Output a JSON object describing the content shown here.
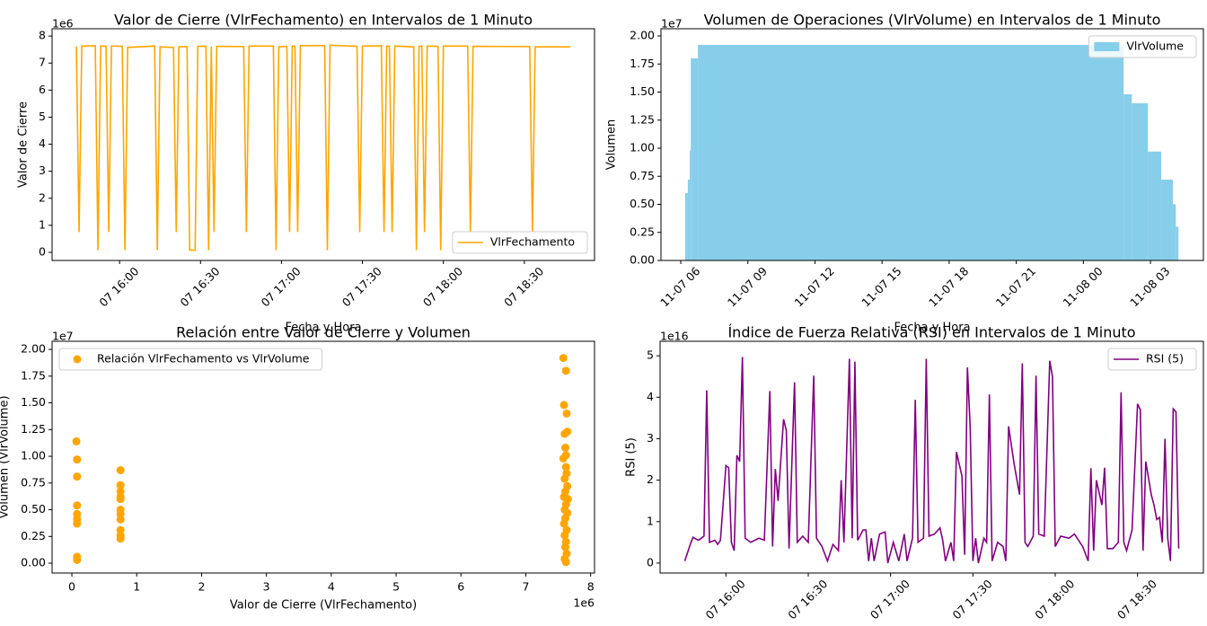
{
  "chart_data": [
    {
      "type": "line",
      "title": "Valor de Cierre (VlrFechamento) en Intervalos de 1 Minuto",
      "x_label": "Fecha y Hora",
      "y_label": "Valor de Cierre",
      "y_offset_label": "1e6",
      "x": [
        "07 15:44",
        "07 15:45",
        "07 15:46",
        "07 15:51",
        "07 15:52",
        "07 15:53",
        "07 15:55",
        "07 15:56",
        "07 15:57",
        "07 16:01",
        "07 16:02",
        "07 16:03",
        "07 16:13",
        "07 16:14",
        "07 16:15",
        "07 16:20",
        "07 16:21",
        "07 16:22",
        "07 16:25",
        "07 16:26",
        "07 16:28",
        "07 16:29",
        "07 16:32",
        "07 16:33",
        "07 16:34",
        "07 16:35",
        "07 16:36",
        "07 16:46",
        "07 16:47",
        "07 16:48",
        "07 16:57",
        "07 16:58",
        "07 16:59",
        "07 17:02",
        "07 17:03",
        "07 17:04",
        "07 17:05",
        "07 17:06",
        "07 17:07",
        "07 17:16",
        "07 17:17",
        "07 17:18",
        "07 17:28",
        "07 17:29",
        "07 17:30",
        "07 17:37",
        "07 17:38",
        "07 17:39",
        "07 17:40",
        "07 17:41",
        "07 17:42",
        "07 17:49",
        "07 17:50",
        "07 17:51",
        "07 17:52",
        "07 17:53",
        "07 17:54",
        "07 17:58",
        "07 17:59",
        "07 18:00",
        "07 18:09",
        "07 18:10",
        "07 18:11",
        "07 18:32",
        "07 18:33",
        "07 18:34",
        "07 18:47"
      ],
      "series": [
        {
          "name": "VlrFechamento",
          "color": "#ffa500",
          "values": [
            7.62,
            0.75,
            7.63,
            7.64,
            0.08,
            7.63,
            7.62,
            0.75,
            7.63,
            7.62,
            0.08,
            7.58,
            7.63,
            0.08,
            7.6,
            7.58,
            0.75,
            7.6,
            7.61,
            0.08,
            0.08,
            7.62,
            7.62,
            0.08,
            7.61,
            0.75,
            7.62,
            7.61,
            0.75,
            7.63,
            7.63,
            0.08,
            7.6,
            7.62,
            0.75,
            7.63,
            7.62,
            0.75,
            7.64,
            7.65,
            0.08,
            7.66,
            7.62,
            0.75,
            7.63,
            7.64,
            0.75,
            7.63,
            7.62,
            0.75,
            7.63,
            7.6,
            0.08,
            7.62,
            7.63,
            0.75,
            7.63,
            7.62,
            0.08,
            7.63,
            7.63,
            0.75,
            7.62,
            7.61,
            0.75,
            7.6,
            7.6
          ]
        }
      ],
      "xlim": [
        "07 15:35",
        "07 18:56"
      ],
      "xticks": [
        "07 16:00",
        "07 16:30",
        "07 17:00",
        "07 17:30",
        "07 18:00",
        "07 18:30"
      ],
      "ylim": [
        -0.3,
        8.27
      ],
      "yticks": [
        0,
        1,
        2,
        3,
        4,
        5,
        6,
        7,
        8
      ],
      "legend": "lower right"
    },
    {
      "type": "histogram",
      "title": "Volumen de Operaciones (VlrVolume) en Intervalos de 1 Minuto",
      "x_label": "Fecha y Hora",
      "y_label": "Volumen",
      "y_offset_label": "1e7",
      "bins": [
        "11-07 06:12",
        "11-07 06:19",
        "11-07 06:24",
        "11-07 06:27",
        "11-07 06:46",
        "11-08 01:48",
        "11-08 02:10",
        "11-08 02:53",
        "11-08 03:29",
        "11-08 04:00",
        "11-08 04:08",
        "11-08 04:15"
      ],
      "series": [
        {
          "name": "VlrVolume",
          "color": "#87ceeb",
          "values": [
            0.6,
            0.72,
            0.98,
            1.8,
            1.92,
            1.48,
            1.4,
            0.97,
            0.72,
            0.5,
            0.3
          ]
        }
      ],
      "xlim": [
        "11-07 05:07",
        "11-08 05:22"
      ],
      "xticks": [
        "11-07 06",
        "11-07 09",
        "11-07 12",
        "11-07 15",
        "11-07 18",
        "11-07 21",
        "11-08 00",
        "11-08 03"
      ],
      "ylim": [
        0,
        2.064
      ],
      "yticks": [
        {
          "value": 0,
          "label": "0.00"
        },
        {
          "value": 0.25,
          "label": "0.25"
        },
        {
          "value": 0.5,
          "label": "0.50"
        },
        {
          "value": 0.75,
          "label": "0.75"
        },
        {
          "value": 1,
          "label": "1.00"
        },
        {
          "value": 1.25,
          "label": "1.25"
        },
        {
          "value": 1.5,
          "label": "1.50"
        },
        {
          "value": 1.75,
          "label": "1.75"
        },
        {
          "value": 2,
          "label": "2.00"
        }
      ],
      "legend": "upper right"
    },
    {
      "type": "scatter",
      "title": "Relación entre Valor de Cierre y Volumen",
      "x_label": "Valor de Cierre (VlrFechamento)",
      "y_label": "Volumen (VlrVolume)",
      "y_offset_label": "1e7",
      "x_offset_label": "1e6",
      "x": [
        0.07,
        0.08,
        0.08,
        0.08,
        0.08,
        0.08,
        0.08,
        0.08,
        0.08,
        0.75,
        0.75,
        0.75,
        0.75,
        0.75,
        0.75,
        0.75,
        0.75,
        0.75,
        0.75,
        0.75,
        7.58,
        7.62,
        7.63,
        7.59,
        7.64,
        7.6,
        7.61,
        7.62,
        7.58,
        7.62,
        7.63,
        7.6,
        7.64,
        7.61,
        7.59,
        7.65,
        7.62,
        7.6,
        7.64,
        7.61,
        7.59,
        7.63,
        7.6,
        7.62,
        7.61,
        7.63,
        7.6,
        7.62
      ],
      "series": [
        {
          "name": "Relación VlrFechamento vs VlrVolume",
          "color": "#ffa500",
          "values": [
            1.14,
            0.97,
            0.81,
            0.54,
            0.46,
            0.41,
            0.37,
            0.06,
            0.03,
            0.87,
            0.73,
            0.67,
            0.62,
            0.6,
            0.5,
            0.46,
            0.41,
            0.31,
            0.26,
            0.23,
            1.92,
            1.8,
            1.4,
            1.48,
            1.23,
            1.21,
            1.08,
            1.01,
            0.98,
            0.9,
            0.84,
            0.79,
            0.72,
            0.67,
            0.62,
            0.6,
            0.55,
            0.5,
            0.47,
            0.42,
            0.37,
            0.31,
            0.26,
            0.2,
            0.15,
            0.09,
            0.04,
            0.01
          ]
        }
      ],
      "xlim": [
        -0.305,
        8.06
      ],
      "xticks": [
        0,
        1,
        2,
        3,
        4,
        5,
        6,
        7,
        8
      ],
      "ylim": [
        -0.092,
        2.076
      ],
      "yticks": [
        {
          "value": 0,
          "label": "0.00"
        },
        {
          "value": 0.25,
          "label": "0.25"
        },
        {
          "value": 0.5,
          "label": "0.50"
        },
        {
          "value": 0.75,
          "label": "0.75"
        },
        {
          "value": 1,
          "label": "1.00"
        },
        {
          "value": 1.25,
          "label": "1.25"
        },
        {
          "value": 1.5,
          "label": "1.50"
        },
        {
          "value": 1.75,
          "label": "1.75"
        },
        {
          "value": 2,
          "label": "2.00"
        }
      ],
      "legend": "upper left"
    },
    {
      "type": "line",
      "title": "Índice de Fuerza Relativa (RSI) en Intervalos de 1 Minuto",
      "y_label": "RSI (5)",
      "y_offset_label": "1e16",
      "x": [
        "07 15:45",
        "07 15:47",
        "07 15:48",
        "07 15:50",
        "07 15:52",
        "07 15:53",
        "07 15:54",
        "07 15:56",
        "07 15:57",
        "07 15:58",
        "07 16:00",
        "07 16:01",
        "07 16:02",
        "07 16:03",
        "07 16:04",
        "07 16:05",
        "07 16:06",
        "07 16:07",
        "07 16:09",
        "07 16:12",
        "07 16:14",
        "07 16:16",
        "07 16:17",
        "07 16:18",
        "07 16:19",
        "07 16:21",
        "07 16:22",
        "07 16:23",
        "07 16:25",
        "07 16:26",
        "07 16:28",
        "07 16:30",
        "07 16:32",
        "07 16:33",
        "07 16:35",
        "07 16:37",
        "07 16:39",
        "07 16:41",
        "07 16:42",
        "07 16:43",
        "07 16:45",
        "07 16:46",
        "07 16:47",
        "07 16:48",
        "07 16:50",
        "07 16:51",
        "07 16:52",
        "07 16:53",
        "07 16:54",
        "07 16:56",
        "07 16:58",
        "07 16:59",
        "07 17:01",
        "07 17:03",
        "07 17:05",
        "07 17:06",
        "07 17:08",
        "07 17:09",
        "07 17:10",
        "07 17:12",
        "07 17:13",
        "07 17:14",
        "07 17:16",
        "07 17:18",
        "07 17:19",
        "07 17:20",
        "07 17:22",
        "07 17:23",
        "07 17:24",
        "07 17:26",
        "07 17:27",
        "07 17:28",
        "07 17:29",
        "07 17:30",
        "07 17:31",
        "07 17:32",
        "07 17:34",
        "07 17:35",
        "07 17:36",
        "07 17:37",
        "07 17:39",
        "07 17:41",
        "07 17:42",
        "07 17:43",
        "07 17:45",
        "07 17:47",
        "07 17:48",
        "07 17:49",
        "07 17:50",
        "07 17:52",
        "07 17:53",
        "07 17:54",
        "07 17:56",
        "07 17:58",
        "07 17:59",
        "07 18:00",
        "07 18:02",
        "07 18:05",
        "07 18:07",
        "07 18:10",
        "07 18:12",
        "07 18:13",
        "07 18:14",
        "07 18:15",
        "07 18:17",
        "07 18:18",
        "07 18:19",
        "07 18:21",
        "07 18:23",
        "07 18:24",
        "07 18:25",
        "07 18:26",
        "07 18:28",
        "07 18:30",
        "07 18:31",
        "07 18:32",
        "07 18:33",
        "07 18:35",
        "07 18:36",
        "07 18:37",
        "07 18:38",
        "07 18:39",
        "07 18:40",
        "07 18:41",
        "07 18:42",
        "07 18:43",
        "07 18:44",
        "07 18:45"
      ],
      "series": [
        {
          "name": "RSI (5)",
          "color": "#800080",
          "values": [
            0.05,
            0.45,
            0.62,
            0.55,
            0.65,
            4.17,
            0.5,
            0.55,
            0.45,
            0.55,
            2.35,
            2.3,
            0.5,
            0.3,
            2.6,
            2.45,
            4.97,
            0.6,
            0.5,
            0.6,
            0.55,
            4.15,
            0.4,
            2.27,
            1.5,
            3.47,
            3.2,
            0.35,
            4.36,
            0.5,
            0.65,
            0.5,
            4.52,
            0.6,
            0.4,
            0.05,
            0.45,
            0.3,
            2.0,
            0.5,
            4.93,
            0.6,
            4.86,
            0.55,
            0.8,
            0.8,
            0.05,
            0.6,
            0.05,
            0.7,
            0.75,
            0.0,
            0.5,
            0.05,
            0.7,
            0.05,
            0.6,
            3.94,
            0.5,
            0.6,
            4.93,
            0.65,
            0.7,
            0.85,
            0.55,
            0.05,
            0.5,
            0.05,
            2.68,
            2.1,
            0.2,
            4.72,
            3.3,
            0.05,
            0.6,
            0.0,
            0.6,
            0.5,
            4.07,
            0.05,
            0.5,
            0.4,
            0.05,
            3.3,
            2.4,
            1.65,
            4.82,
            0.5,
            0.4,
            0.65,
            4.52,
            0.7,
            0.65,
            4.88,
            4.5,
            0.4,
            0.65,
            0.6,
            0.7,
            0.4,
            0.05,
            2.29,
            0.3,
            2.0,
            1.4,
            2.3,
            0.35,
            0.35,
            0.5,
            4.12,
            0.5,
            0.3,
            0.8,
            3.84,
            3.7,
            0.3,
            2.45,
            1.65,
            1.4,
            1.05,
            1.1,
            0.5,
            3.0,
            0.6,
            0.05,
            3.72,
            3.65,
            0.35
          ]
        }
      ],
      "xlim": [
        "07 15:36",
        "07 18:54"
      ],
      "xticks": [
        "07 16:00",
        "07 16:30",
        "07 17:00",
        "07 17:30",
        "07 18:00",
        "07 18:30"
      ],
      "ylim": [
        -0.24,
        5.35
      ],
      "yticks": [
        0,
        1,
        2,
        3,
        4,
        5
      ],
      "legend": "upper right"
    }
  ]
}
